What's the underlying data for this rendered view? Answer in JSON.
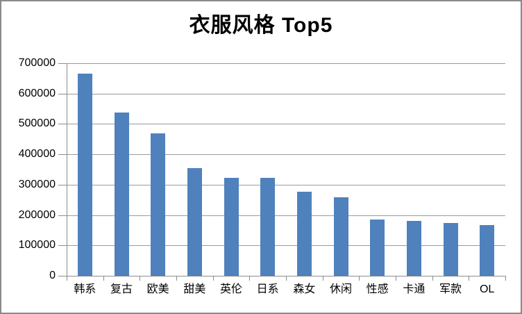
{
  "chart_data": {
    "type": "bar",
    "title": "衣服风格 Top5",
    "categories": [
      "韩系",
      "复古",
      "欧美",
      "甜美",
      "英伦",
      "日系",
      "森女",
      "休闲",
      "性感",
      "卡通",
      "军款",
      "OL"
    ],
    "values": [
      665000,
      537000,
      470000,
      354000,
      322000,
      322000,
      278000,
      259000,
      185000,
      180000,
      174000,
      166000
    ],
    "xlabel": "",
    "ylabel": "",
    "ylim": [
      0,
      700000
    ],
    "ytick_step": 100000,
    "ytick_labels": [
      "0",
      "100000",
      "200000",
      "300000",
      "400000",
      "500000",
      "600000",
      "700000"
    ],
    "grid": true,
    "legend_position": "none",
    "bar_color": "#4f81bd",
    "gridline_color": "#9a9a9a",
    "axis_color": "#8c8c8c",
    "frame_border_color": "#8a8a8a",
    "text_color": "#000000",
    "background_color": "#ffffff"
  }
}
